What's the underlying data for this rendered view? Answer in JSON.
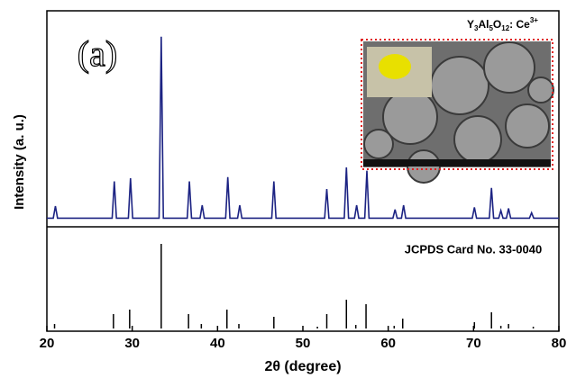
{
  "chart_data": [
    {
      "type": "line",
      "panel_label": "(a)",
      "inset_label": [
        "Y",
        "3",
        "Al",
        "5",
        "O",
        "12",
        ": Ce",
        "3+"
      ],
      "ylabel": "Intensity (a. u.)",
      "color": "#1c2383",
      "xlim": [
        20,
        80
      ],
      "ylim": [
        0,
        100
      ],
      "x": [
        20,
        20.75,
        21.0,
        21.25,
        27.65,
        27.9,
        28.15,
        29.55,
        29.8,
        30.05,
        33.15,
        33.4,
        33.65,
        36.45,
        36.7,
        36.95,
        37.95,
        38.2,
        38.45,
        40.95,
        41.2,
        41.45,
        42.35,
        42.6,
        42.85,
        46.35,
        46.6,
        46.85,
        52.55,
        52.8,
        53.05,
        54.85,
        55.1,
        55.35,
        56.05,
        56.3,
        56.55,
        57.25,
        57.5,
        57.75,
        60.55,
        60.8,
        61.05,
        61.55,
        61.8,
        62.05,
        69.85,
        70.1,
        70.35,
        71.85,
        72.1,
        72.35,
        72.95,
        73.2,
        73.45,
        73.85,
        74.1,
        74.35,
        76.55,
        76.8,
        77.05,
        80
      ],
      "values": [
        4,
        4,
        9.6,
        4,
        4,
        21,
        4,
        4,
        22.5,
        4,
        4,
        88,
        4,
        4,
        21,
        4,
        4,
        10,
        4,
        4,
        23,
        4,
        4,
        10,
        4,
        4,
        21,
        4,
        4,
        17.5,
        4,
        4,
        27.5,
        4,
        4,
        10,
        4,
        4,
        26,
        4,
        4,
        8,
        4,
        4,
        10,
        4,
        4,
        9,
        4,
        4,
        18,
        4,
        4,
        7.5,
        4,
        4,
        8.5,
        4,
        4,
        6.5,
        4,
        4
      ]
    },
    {
      "type": "stick",
      "title": "JCPDS Card No. 33-0040",
      "xlabel": "2θ (degree)",
      "color": "#000000",
      "xlim": [
        20,
        80
      ],
      "xticks": [
        20,
        30,
        40,
        50,
        60,
        70,
        80
      ],
      "ylim": [
        0,
        100
      ],
      "x": [
        20.9,
        27.8,
        29.7,
        33.4,
        36.6,
        38.1,
        41.1,
        42.5,
        46.6,
        51.7,
        52.8,
        55.1,
        56.2,
        57.4,
        60.7,
        61.7,
        70.1,
        72.1,
        73.2,
        74.1,
        77.0
      ],
      "values": [
        5,
        16,
        21,
        94,
        16,
        5,
        21,
        5,
        13,
        2,
        16,
        32,
        4,
        27,
        3,
        11,
        7,
        18,
        3,
        5,
        2
      ]
    }
  ]
}
